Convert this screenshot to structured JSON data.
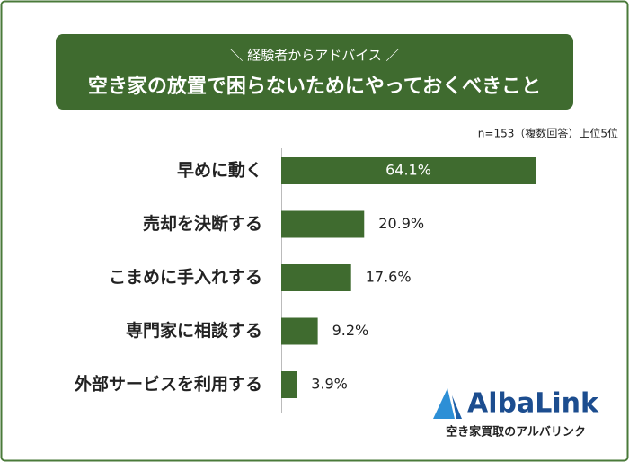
{
  "chart_data": {
    "type": "hbar",
    "subtitle": "＼ 経験者からアドバイス ／",
    "title": "空き家の放置で困らないためにやっておくべきこと",
    "note": "n=153（複数回答）上位5位",
    "categories": [
      "早めに動く",
      "売却を決断する",
      "こまめに手入れする",
      "専門家に相談する",
      "外部サービスを利用する"
    ],
    "values": [
      64.1,
      20.9,
      17.6,
      9.2,
      3.9
    ],
    "value_labels": [
      "64.1%",
      "20.9%",
      "17.6%",
      "9.2%",
      "3.9%"
    ],
    "color": "#3f6b2f",
    "logo": {
      "name": "AlbaLink",
      "tagline": "空き家買取のアルバリンク"
    }
  }
}
